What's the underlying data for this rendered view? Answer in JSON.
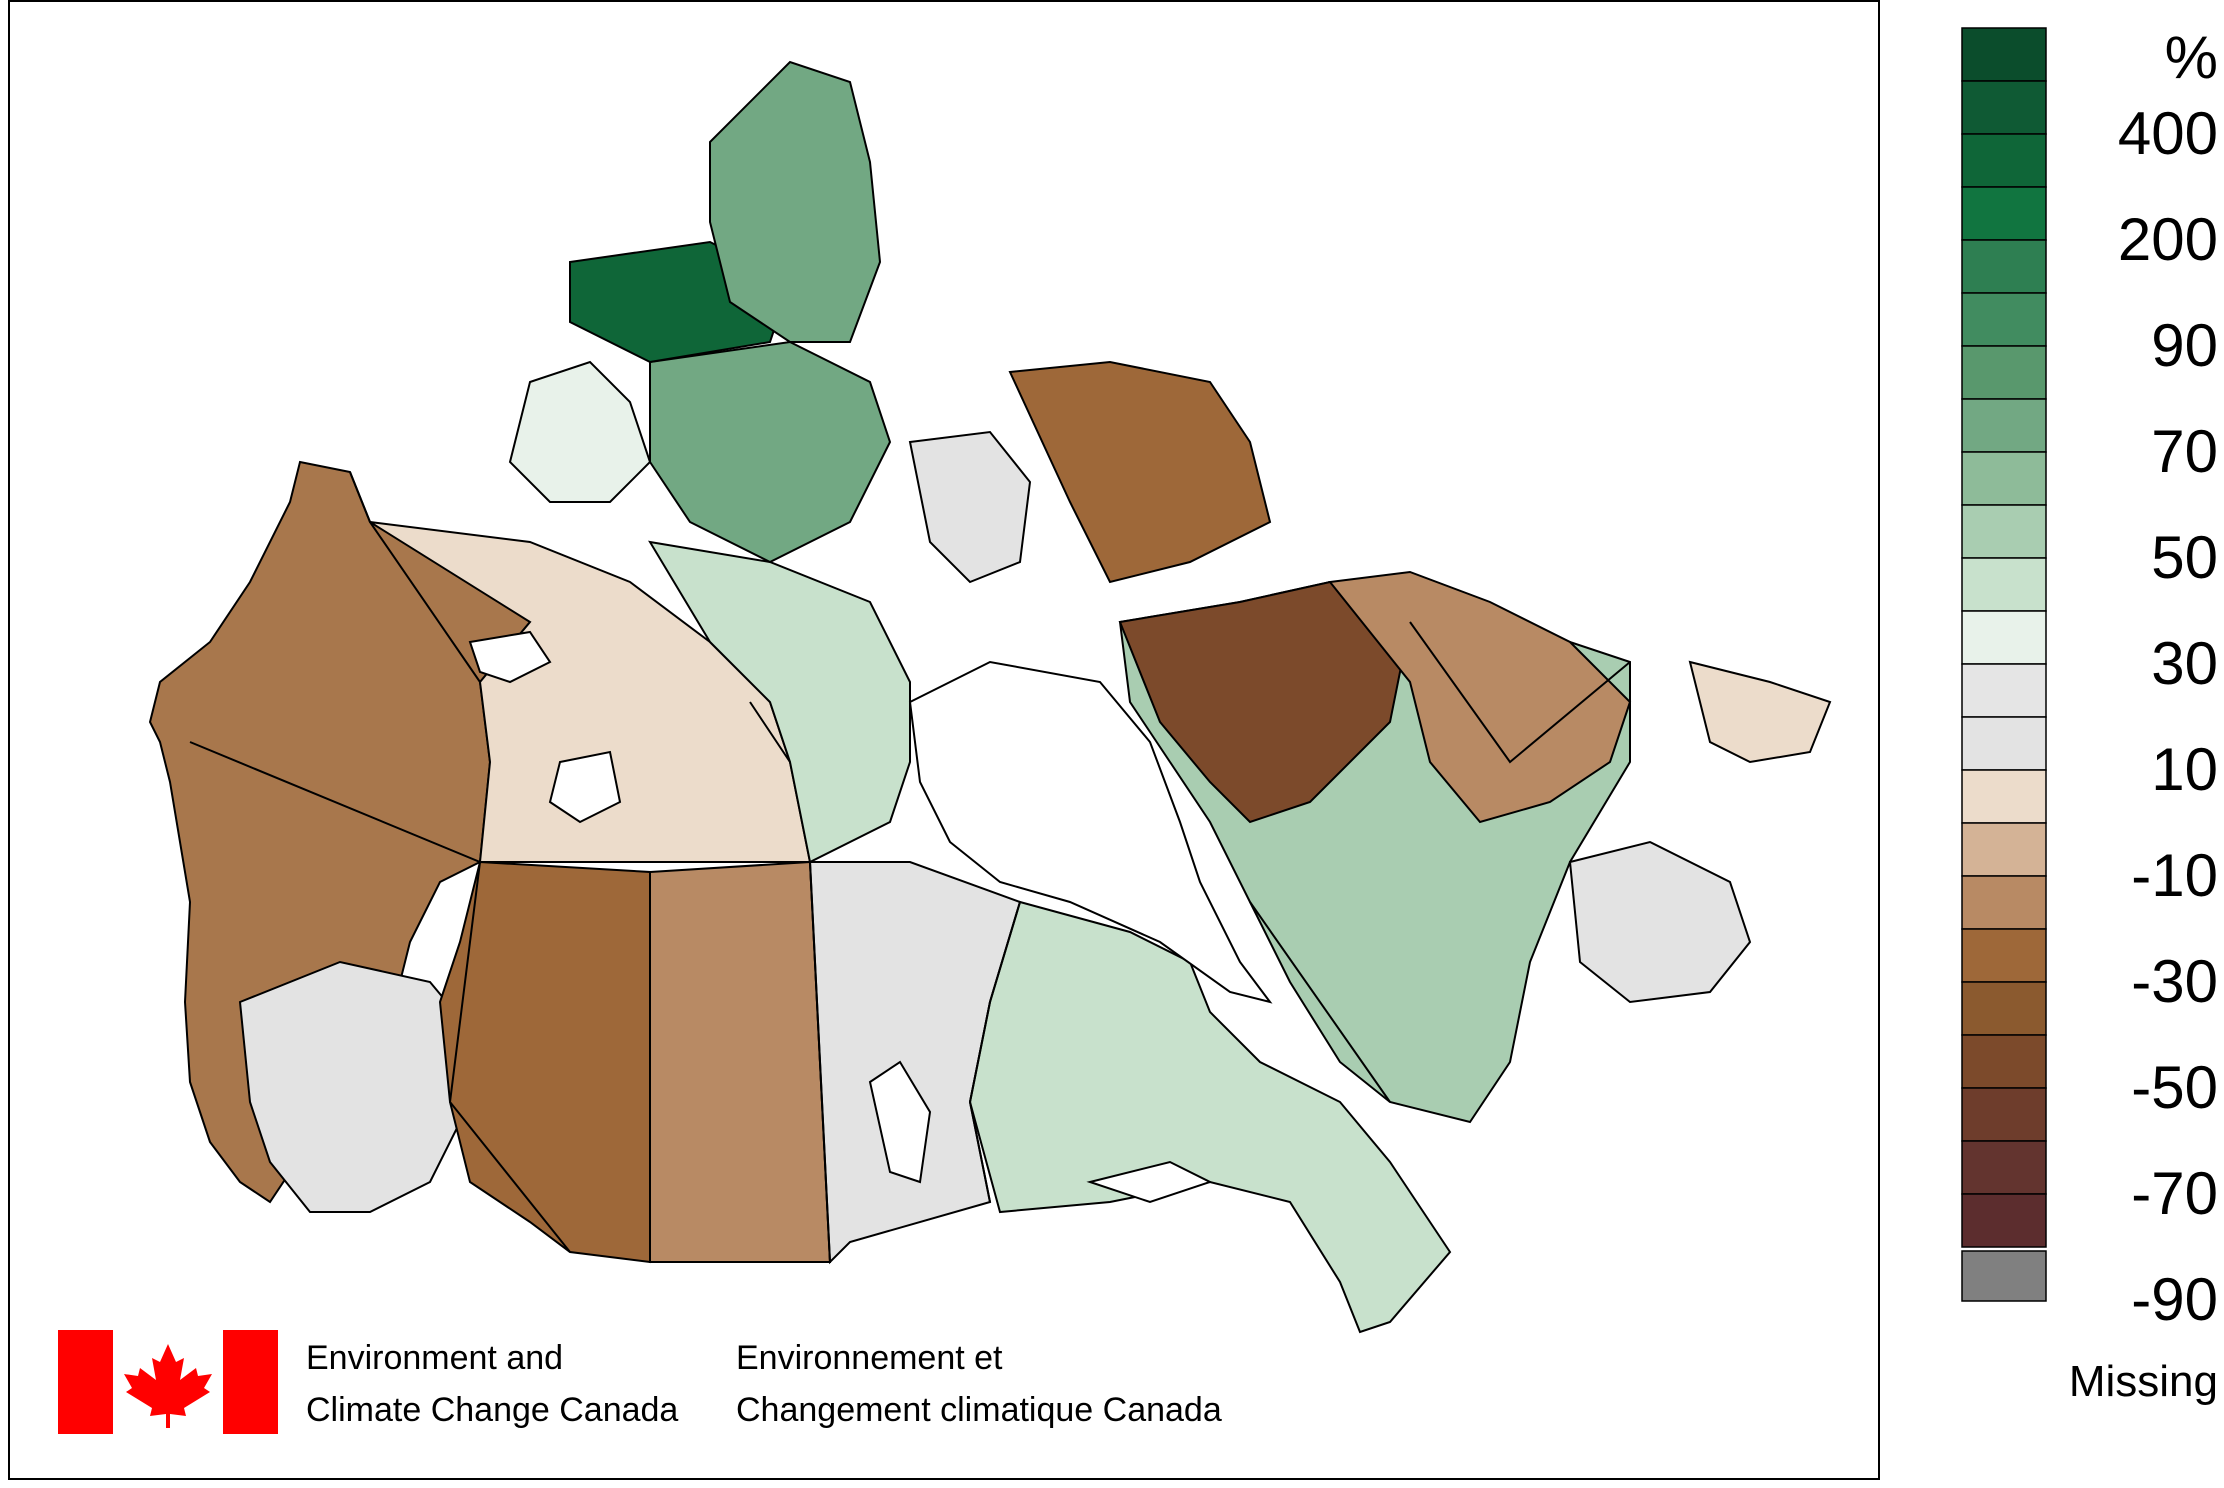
{
  "organization": {
    "en_line1": "Environment and",
    "en_line2": "Climate Change Canada",
    "fr_line1": "Environnement et",
    "fr_line2": "Changement climatique Canada"
  },
  "legend": {
    "unit": "%",
    "tick_labels": [
      "400",
      "200",
      "90",
      "70",
      "50",
      "30",
      "10",
      "-10",
      "-30",
      "-50",
      "-70",
      "-90"
    ],
    "missing_label": "Missing",
    "colors": [
      "#0b4d2c",
      "#0f5a34",
      "#0f6638",
      "#117540",
      "#2e7f52",
      "#418c60",
      "#59986d",
      "#72a883",
      "#8ebb99",
      "#a9cdb1",
      "#c8e1cc",
      "#e8f2ea",
      "#e5e5e5",
      "#e3e3e3",
      "#ecdccb",
      "#d4b396",
      "#b88a64",
      "#9e6839",
      "#8b5a2f",
      "#7c4a2b",
      "#6e3d2c",
      "#63342f",
      "#5c2d2e"
    ],
    "missing_color": "#808080"
  },
  "flag_icon": "canada-flag-icon"
}
